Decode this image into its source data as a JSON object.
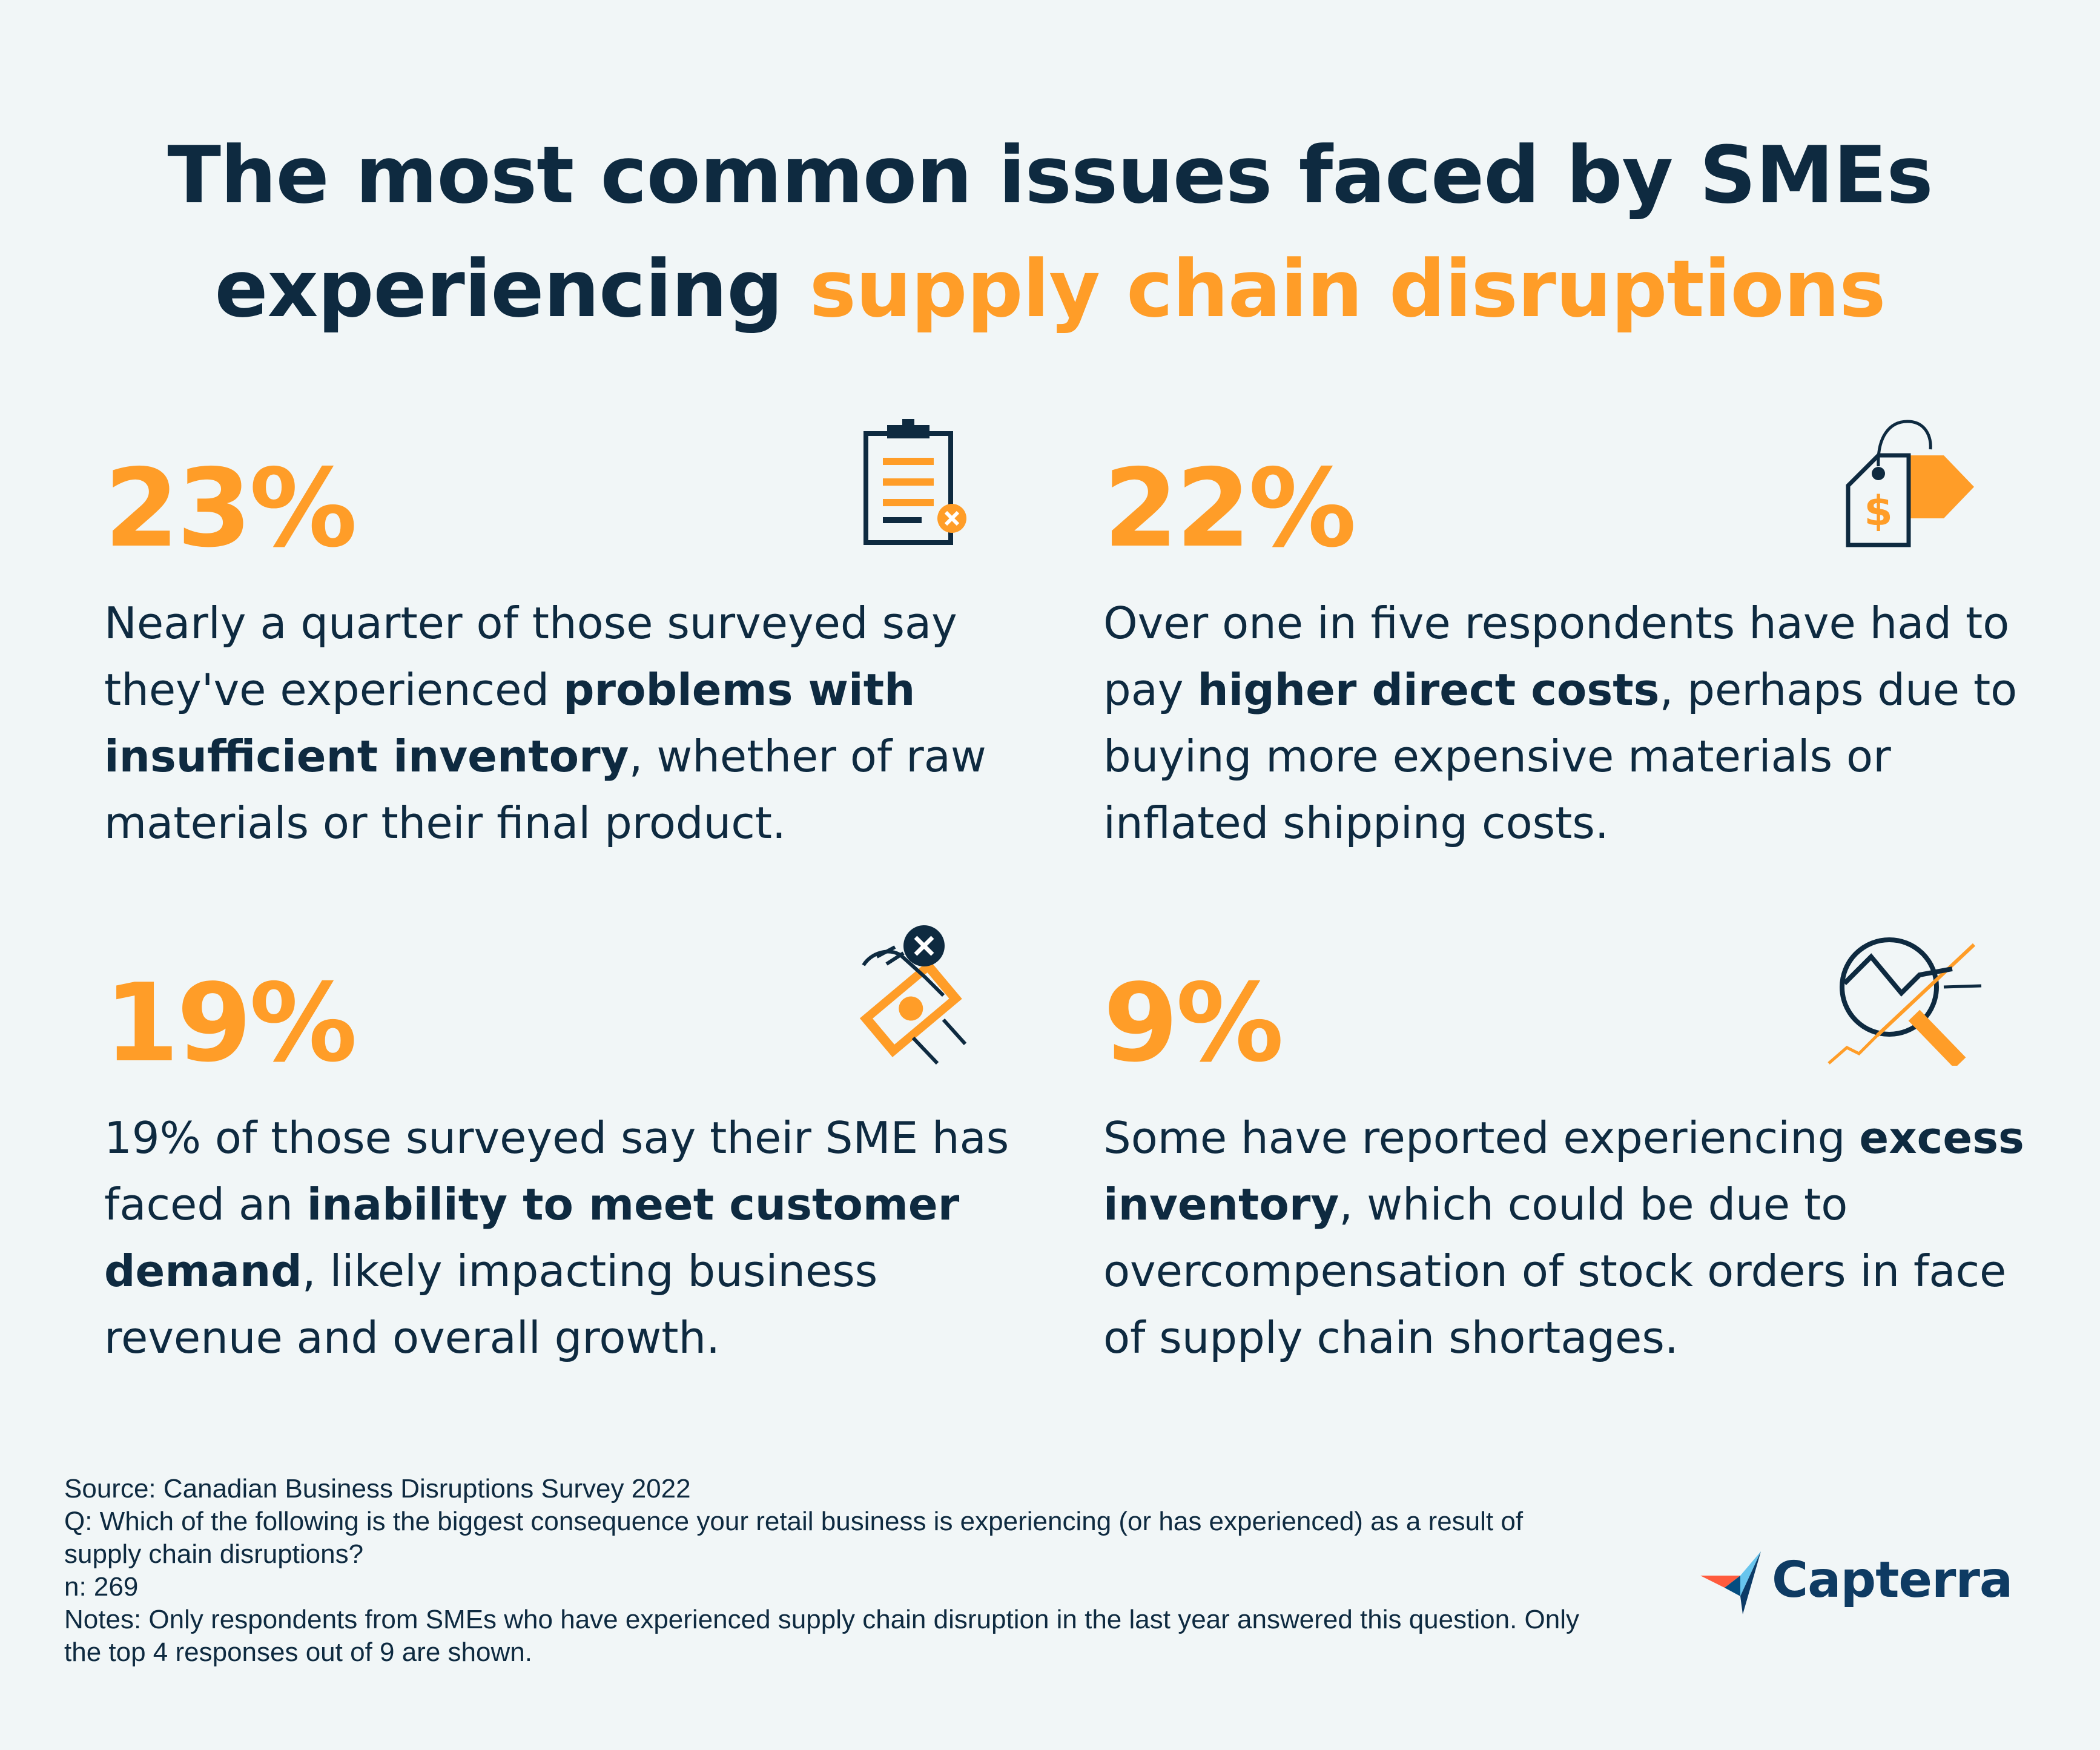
{
  "title": {
    "line1": "The most common issues faced by SMEs",
    "line2_plain": "experiencing ",
    "line2_accent": "supply chain disruptions"
  },
  "colors": {
    "accent": "#ff9d28",
    "navy": "#0e2a40",
    "background": "#f1f6f7",
    "logo_blue": "#0e3b63"
  },
  "stats": [
    {
      "percent": "23%",
      "icon": "clipboard-x-icon",
      "text_before": "Nearly a quarter of those surveyed say they've experienced ",
      "text_bold": "problems with insufficient inventory",
      "text_after": ", whether of raw materials or their final product."
    },
    {
      "percent": "22%",
      "icon": "price-tag-dollar-icon",
      "text_before": "Over one in five respondents have had to pay ",
      "text_bold": "higher direct costs",
      "text_after": ", perhaps due to buying more expensive materials or inflated shipping costs."
    },
    {
      "percent": "19%",
      "icon": "hand-money-declined-icon",
      "text_before": "19% of those surveyed say their SME has faced an ",
      "text_bold": "inability to meet customer demand",
      "text_after": ", likely impacting business revenue and overall growth."
    },
    {
      "percent": "9%",
      "icon": "magnifier-trend-icon",
      "text_before": "Some have reported experiencing ",
      "text_bold": "excess inventory",
      "text_after": ", which could be due to overcompensation of stock orders in face of supply chain shortages."
    }
  ],
  "footer": {
    "source": "Source: Canadian Business Disruptions Survey 2022",
    "question": "Q: Which of the following is the biggest consequence your retail business is experiencing (or has experienced) as a result of supply chain disruptions?",
    "n": "n: 269",
    "notes": "Notes: Only respondents from SMEs who have experienced supply chain disruption in the last year answered this question. Only the top 4 responses out of 9 are shown."
  },
  "logo": {
    "text": "Capterra",
    "icon": "capterra-arrow-icon"
  }
}
